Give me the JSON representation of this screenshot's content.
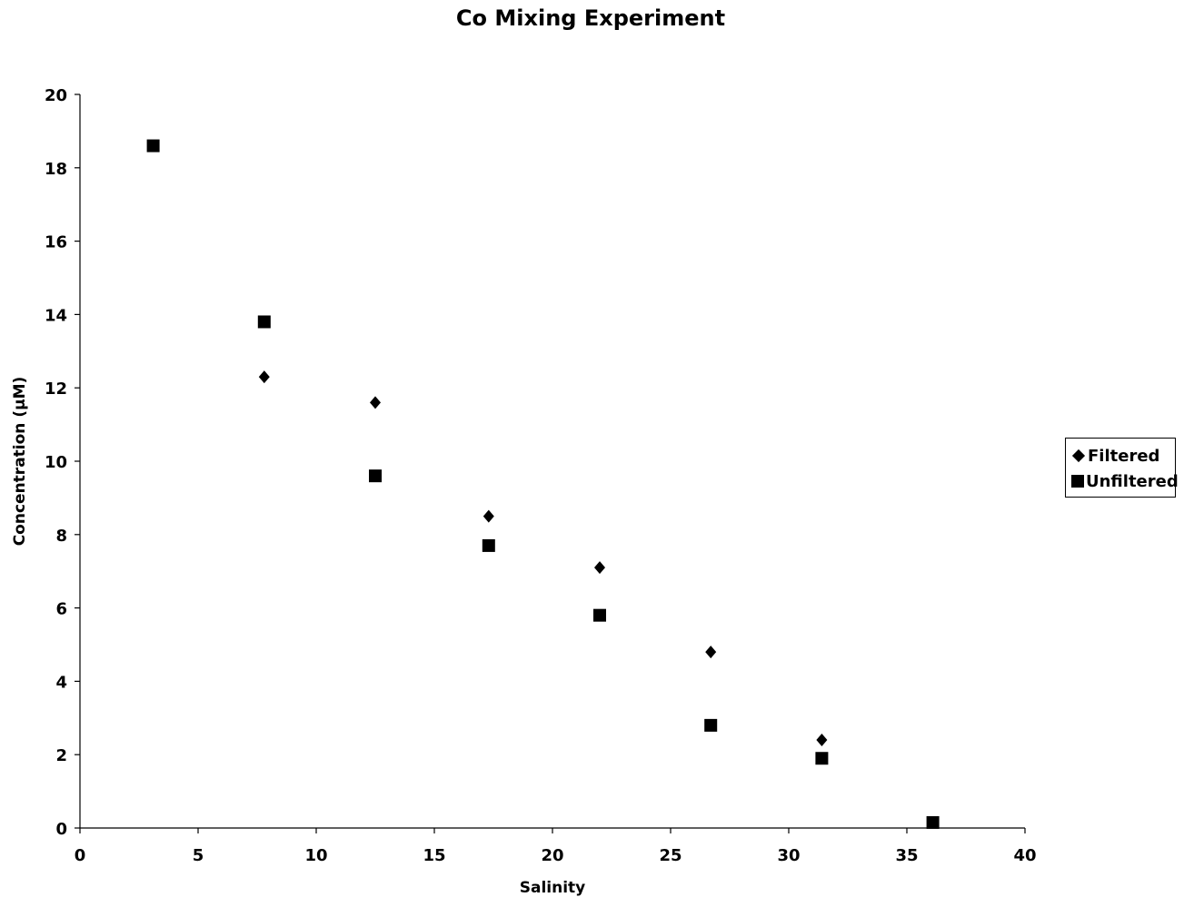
{
  "chart_data": {
    "type": "scatter",
    "title": "Co Mixing Experiment",
    "xlabel": "Salinity",
    "ylabel": "Concentration (μM)",
    "xlim": [
      0,
      40
    ],
    "ylim": [
      0,
      20
    ],
    "x_ticks": [
      "0",
      "5",
      "10",
      "15",
      "20",
      "25",
      "30",
      "35",
      "40"
    ],
    "y_ticks": [
      "0",
      "2",
      "4",
      "6",
      "8",
      "10",
      "12",
      "14",
      "16",
      "18",
      "20"
    ],
    "grid": false,
    "legend_position": "right",
    "series": [
      {
        "name": "Filtered",
        "marker": "diamond",
        "color": "#000000",
        "x": [
          7.8,
          12.5,
          17.3,
          22.0,
          26.7,
          31.4
        ],
        "y": [
          12.3,
          11.6,
          8.5,
          7.1,
          4.8,
          2.4
        ]
      },
      {
        "name": "Unfiltered",
        "marker": "square",
        "color": "#000000",
        "x": [
          3.1,
          7.8,
          12.5,
          17.3,
          22.0,
          26.7,
          31.4,
          36.1
        ],
        "y": [
          18.6,
          13.8,
          9.6,
          7.7,
          5.8,
          2.8,
          1.9,
          0.15
        ]
      }
    ]
  }
}
